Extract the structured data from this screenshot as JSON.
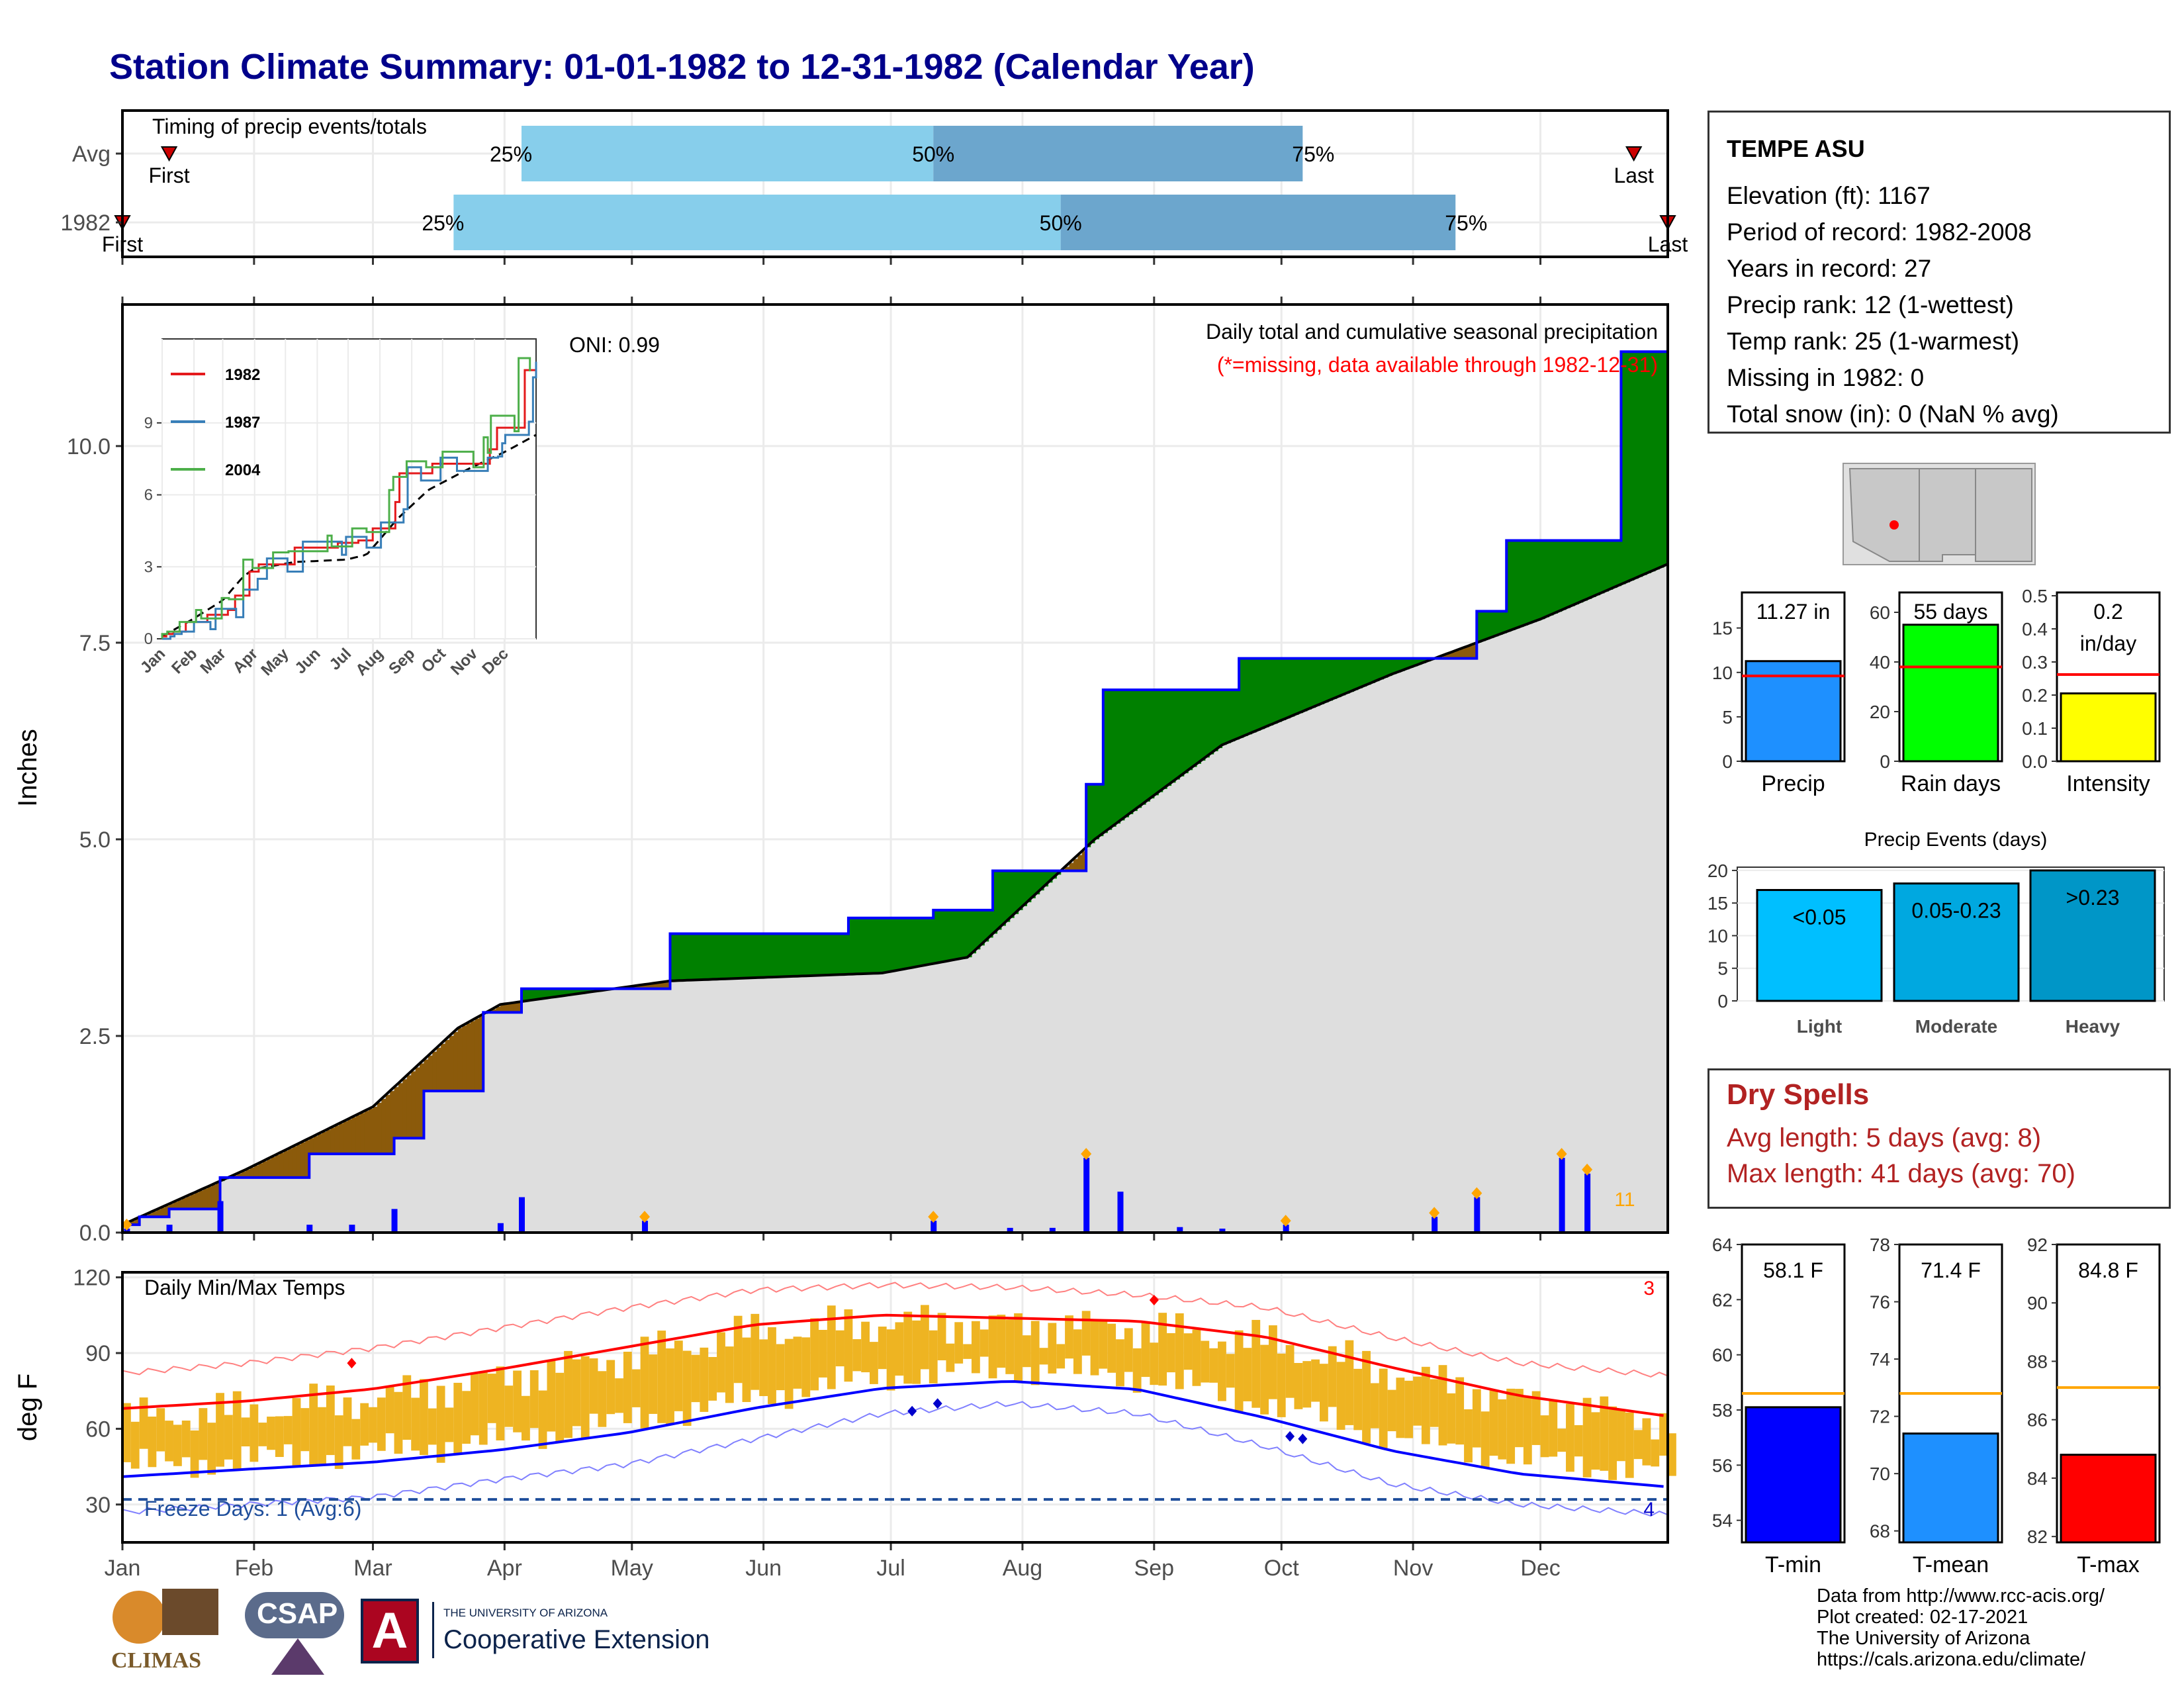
{
  "title": "Station Climate Summary: 01-01-1982 to 12-31-1982 (Calendar Year)",
  "timing": {
    "label": "Timing of precip events/totals",
    "rows": [
      {
        "name": "Avg",
        "first_label": "First",
        "last_label": "Last",
        "first_doy": 12,
        "last_doy": 357,
        "q25_doy": 95,
        "q50_doy": 192,
        "q75_doy": 279,
        "q25_label": "25%",
        "q50_label": "50%",
        "q75_label": "75%"
      },
      {
        "name": "1982",
        "first_label": "First",
        "last_label": "Last",
        "first_doy": 1,
        "last_doy": 365,
        "q25_doy": 79,
        "q50_doy": 222,
        "q75_doy": 315,
        "q25_label": "25%",
        "q50_label": "50%",
        "q75_label": "75%"
      }
    ]
  },
  "precip_panel": {
    "ylabel": "Inches",
    "oni": "ONI: 0.99",
    "caption": "Daily total and cumulative seasonal precipitation",
    "missing_note": "(*=missing, data available through 1982-12-31)",
    "count_label": "11",
    "yticks": [
      "0.0",
      "2.5",
      "5.0",
      "7.5",
      "10.0"
    ],
    "inset": {
      "legend": [
        "1982",
        "1987",
        "2004"
      ],
      "yticks": [
        "0",
        "3",
        "6",
        "9"
      ],
      "xticks": [
        "Jan",
        "Feb",
        "Mar",
        "Apr",
        "May",
        "Jun",
        "Jul",
        "Aug",
        "Sep",
        "Oct",
        "Nov",
        "Dec"
      ]
    }
  },
  "temp_panel": {
    "ylabel": "deg F",
    "label": "Daily Min/Max Temps",
    "freeze_label": "Freeze Days: 1 (Avg:6)",
    "record_high_count": "3",
    "record_low_count": "4",
    "yticks": [
      "30",
      "60",
      "90",
      "120"
    ]
  },
  "months": [
    "Jan",
    "Feb",
    "Mar",
    "Apr",
    "May",
    "Jun",
    "Jul",
    "Aug",
    "Sep",
    "Oct",
    "Nov",
    "Dec"
  ],
  "station": {
    "name": "TEMPE ASU",
    "lines": [
      "Elevation (ft): 1167",
      "Period of record: 1982-2008",
      "Years in record: 27",
      "Precip rank: 12 (1-wettest)",
      "Temp rank: 25 (1-warmest)",
      "Missing in 1982: 0",
      "Total snow (in): 0 (NaN % avg)"
    ]
  },
  "summary_bars": [
    {
      "label": "Precip",
      "value_label": "11.27 in",
      "value": 11.27,
      "avg": 9.6,
      "ymax": 19,
      "yticks": [
        "0",
        "5",
        "10",
        "15"
      ],
      "tickvals": [
        0,
        5,
        10,
        15
      ],
      "color": "#1E90FF"
    },
    {
      "label": "Rain days",
      "value_label": "55 days",
      "value": 55,
      "avg": 38,
      "ymax": 68,
      "yticks": [
        "0",
        "20",
        "40",
        "60"
      ],
      "tickvals": [
        0,
        20,
        40,
        60
      ],
      "color": "#00FF00"
    },
    {
      "label": "Intensity",
      "value_label": "0.2 in/day",
      "value": 0.205,
      "avg": 0.262,
      "ymax": 0.51,
      "yticks": [
        "0.0",
        "0.1",
        "0.2",
        "0.3",
        "0.4",
        "0.5"
      ],
      "tickvals": [
        0,
        0.1,
        0.2,
        0.3,
        0.4,
        0.5
      ],
      "color": "#FFFF00"
    }
  ],
  "events": {
    "title": "Precip Events (days)",
    "yticks": [
      "0",
      "5",
      "10",
      "15",
      "20"
    ],
    "bars": [
      {
        "label": "Light",
        "value_label": "<0.05",
        "value": 17,
        "color": "#00BFFF"
      },
      {
        "label": "Moderate",
        "value_label": "0.05-0.23",
        "value": 18,
        "color": "#00A8E0"
      },
      {
        "label": "Heavy",
        "value_label": ">0.23",
        "value": 20,
        "color": "#0096C7"
      }
    ]
  },
  "dry_spells": {
    "title": "Dry Spells",
    "avg_line": "Avg length: 5 days (avg: 8)",
    "max_line": "Max length: 41 days (avg: 70)"
  },
  "temp_bars": [
    {
      "label": "T-min",
      "value_label": "58.1 F",
      "value": 58.1,
      "avg": 58.6,
      "ymin": 53.2,
      "ymax": 64,
      "yticks": [
        "54",
        "56",
        "58",
        "60",
        "62",
        "64"
      ],
      "tickvals": [
        54,
        56,
        58,
        60,
        62,
        64
      ],
      "color": "#0000FF"
    },
    {
      "label": "T-mean",
      "value_label": "71.4 F",
      "value": 71.4,
      "avg": 72.8,
      "ymin": 67.6,
      "ymax": 78,
      "yticks": [
        "68",
        "70",
        "72",
        "74",
        "76",
        "78"
      ],
      "tickvals": [
        68,
        70,
        72,
        74,
        76,
        78
      ],
      "color": "#1E90FF"
    },
    {
      "label": "T-max",
      "value_label": "84.8 F",
      "value": 84.8,
      "avg": 87.1,
      "ymin": 81.8,
      "ymax": 92,
      "yticks": [
        "82",
        "84",
        "86",
        "88",
        "90",
        "92"
      ],
      "tickvals": [
        82,
        84,
        86,
        88,
        90,
        92
      ],
      "color": "#FF0000"
    }
  ],
  "footer": [
    "Data from http://www.rcc-acis.org/",
    "Plot created: 02-17-2021",
    "The University of Arizona",
    "https://cals.arizona.edu/climate/"
  ],
  "logos": {
    "climas": "CLIMAS",
    "csap": "CSAP",
    "ua_line1": "THE UNIVERSITY OF ARIZONA",
    "ua_line2": "Cooperative Extension"
  },
  "colors": {
    "title": "#00008B",
    "above_avg": "#008000",
    "below_avg": "#8B5A0B",
    "avg_fill": "#DEDEDE",
    "quartile_light": "#87CEEB",
    "quartile_dark": "#6CA6CD",
    "daily_bar": "#0000FF",
    "temp_range": "#EEB422",
    "dry_spell": "#B22222"
  },
  "chart_data": [
    {
      "type": "area",
      "title": "Daily total and cumulative seasonal precipitation",
      "ylabel": "Inches",
      "ylim": [
        0,
        11.8
      ],
      "x_units": "day of year",
      "series": [
        {
          "name": "1982",
          "x": [
            1,
            5,
            12,
            24,
            40,
            45,
            65,
            72,
            86,
            95,
            115,
            130,
            168,
            172,
            192,
            206,
            228,
            232,
            245,
            264,
            280,
            310,
            320,
            324,
            327,
            350,
            354,
            365
          ],
          "y": [
            0.1,
            0.2,
            0.3,
            0.7,
            0.7,
            1.0,
            1.2,
            1.8,
            2.8,
            3.1,
            3.1,
            3.8,
            3.8,
            4.0,
            4.1,
            4.6,
            5.7,
            6.9,
            6.9,
            7.3,
            7.3,
            7.3,
            7.9,
            7.9,
            8.8,
            8.8,
            11.2,
            11.3
          ]
        },
        {
          "name": "Avg",
          "x": [
            1,
            30,
            60,
            80,
            90,
            130,
            180,
            200,
            230,
            260,
            300,
            335,
            365
          ],
          "y": [
            0.1,
            0.8,
            1.6,
            2.6,
            2.9,
            3.2,
            3.3,
            3.5,
            5.0,
            6.2,
            7.1,
            7.8,
            8.5
          ]
        }
      ],
      "daily_precip": {
        "x": [
          2,
          12,
          24,
          45,
          55,
          65,
          90,
          95,
          124,
          192,
          210,
          220,
          228,
          236,
          250,
          260,
          275,
          310,
          320,
          340,
          346
        ],
        "y": [
          0.05,
          0.1,
          0.4,
          0.1,
          0.1,
          0.3,
          0.12,
          0.45,
          0.15,
          0.15,
          0.06,
          0.06,
          0.95,
          0.52,
          0.07,
          0.05,
          0.1,
          0.2,
          0.45,
          0.95,
          0.75
        ]
      },
      "inset_legend": [
        "1982",
        "1987",
        "2004"
      ]
    },
    {
      "type": "line",
      "title": "Daily Min/Max Temps",
      "ylabel": "deg F",
      "ylim": [
        15,
        122
      ],
      "x_units": "day of year",
      "series": [
        {
          "name": "Avg max",
          "x": [
            1,
            30,
            60,
            90,
            120,
            150,
            180,
            210,
            240,
            270,
            300,
            330,
            365
          ],
          "y": [
            67,
            70,
            75,
            83,
            92,
            101,
            105,
            104,
            103,
            97,
            85,
            74,
            66
          ]
        },
        {
          "name": "Avg min",
          "x": [
            1,
            30,
            60,
            90,
            120,
            150,
            180,
            210,
            240,
            270,
            300,
            330,
            365
          ],
          "y": [
            40,
            43,
            46,
            51,
            58,
            68,
            76,
            79,
            76,
            65,
            52,
            43,
            38
          ]
        },
        {
          "name": "Record max",
          "x": [
            1,
            30,
            60,
            90,
            120,
            150,
            180,
            210,
            240,
            270,
            300,
            330,
            365
          ],
          "y": [
            82,
            86,
            92,
            100,
            108,
            115,
            117,
            116,
            113,
            108,
            96,
            86,
            81
          ]
        },
        {
          "name": "Record min",
          "x": [
            1,
            30,
            60,
            90,
            120,
            150,
            180,
            210,
            240,
            270,
            300,
            330,
            365
          ],
          "y": [
            27,
            30,
            33,
            40,
            46,
            56,
            66,
            70,
            66,
            53,
            38,
            30,
            26
          ]
        }
      ],
      "freeze_threshold": 32
    },
    {
      "type": "bar",
      "categories": [
        "Precip",
        "Rain days",
        "Intensity"
      ],
      "values": [
        11.27,
        55,
        0.2
      ]
    },
    {
      "type": "bar",
      "title": "Precip Events (days)",
      "categories": [
        "Light",
        "Moderate",
        "Heavy"
      ],
      "values": [
        17,
        18,
        20
      ]
    },
    {
      "type": "bar",
      "categories": [
        "T-min",
        "T-mean",
        "T-max"
      ],
      "values": [
        58.1,
        71.4,
        84.8
      ]
    }
  ]
}
